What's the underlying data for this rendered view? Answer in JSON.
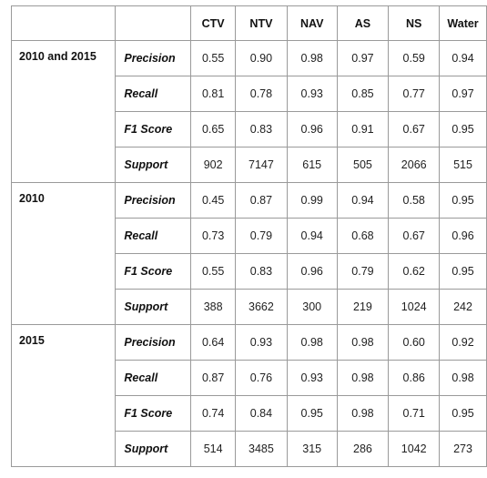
{
  "columns": [
    "CTV",
    "NTV",
    "NAV",
    "AS",
    "NS",
    "Water"
  ],
  "groups": [
    {
      "label": "2010 and 2015",
      "rows": [
        {
          "metric": "Precision",
          "values": [
            "0.55",
            "0.90",
            "0.98",
            "0.97",
            "0.59",
            "0.94"
          ]
        },
        {
          "metric": "Recall",
          "values": [
            "0.81",
            "0.78",
            "0.93",
            "0.85",
            "0.77",
            "0.97"
          ]
        },
        {
          "metric": "F1 Score",
          "values": [
            "0.65",
            "0.83",
            "0.96",
            "0.91",
            "0.67",
            "0.95"
          ]
        },
        {
          "metric": "Support",
          "values": [
            "902",
            "7147",
            "615",
            "505",
            "2066",
            "515"
          ]
        }
      ]
    },
    {
      "label": "2010",
      "rows": [
        {
          "metric": "Precision",
          "values": [
            "0.45",
            "0.87",
            "0.99",
            "0.94",
            "0.58",
            "0.95"
          ]
        },
        {
          "metric": "Recall",
          "values": [
            "0.73",
            "0.79",
            "0.94",
            "0.68",
            "0.67",
            "0.96"
          ]
        },
        {
          "metric": "F1 Score",
          "values": [
            "0.55",
            "0.83",
            "0.96",
            "0.79",
            "0.62",
            "0.95"
          ]
        },
        {
          "metric": "Support",
          "values": [
            "388",
            "3662",
            "300",
            "219",
            "1024",
            "242"
          ]
        }
      ]
    },
    {
      "label": "2015",
      "rows": [
        {
          "metric": "Precision",
          "values": [
            "0.64",
            "0.93",
            "0.98",
            "0.98",
            "0.60",
            "0.92"
          ]
        },
        {
          "metric": "Recall",
          "values": [
            "0.87",
            "0.76",
            "0.93",
            "0.98",
            "0.86",
            "0.98"
          ]
        },
        {
          "metric": "F1 Score",
          "values": [
            "0.74",
            "0.84",
            "0.95",
            "0.98",
            "0.71",
            "0.95"
          ]
        },
        {
          "metric": "Support",
          "values": [
            "514",
            "3485",
            "315",
            "286",
            "1042",
            "273"
          ]
        }
      ]
    }
  ]
}
